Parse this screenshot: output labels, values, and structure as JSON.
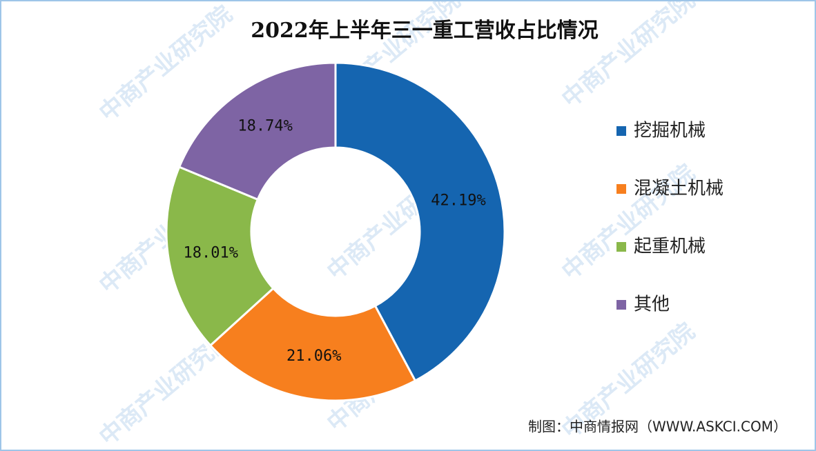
{
  "chart_data": {
    "type": "donut",
    "title": "2022年上半年三一重工营收占比情况",
    "categories": [
      "挖掘机械",
      "混凝土机械",
      "起重机械",
      "其他"
    ],
    "values": [
      42.19,
      21.06,
      18.01,
      18.74
    ],
    "value_labels": [
      "42.19%",
      "21.06%",
      "18.01%",
      "18.74%"
    ],
    "colors": [
      "#1565b0",
      "#f77f1e",
      "#8ab84a",
      "#7e64a4"
    ],
    "legend": "right",
    "source": "制图：中商情报网（WWW.ASKCI.COM）",
    "watermark": "中商产业研究院"
  }
}
